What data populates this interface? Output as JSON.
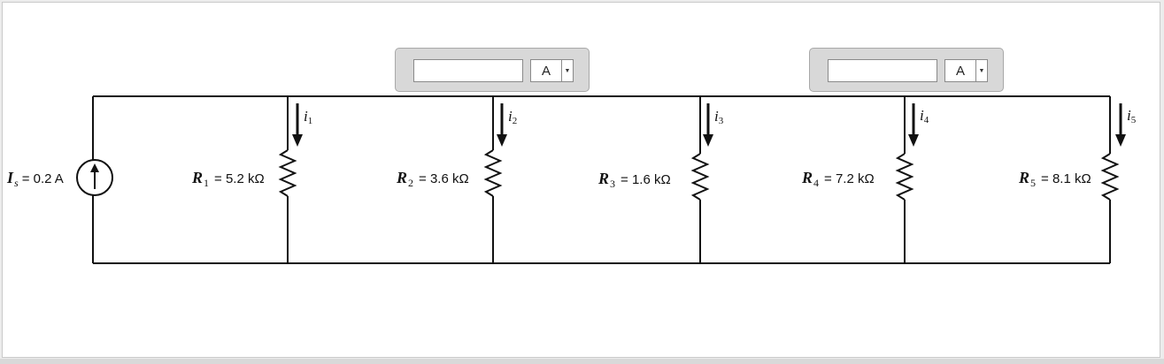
{
  "source": {
    "symbol": "I",
    "subscript": "s",
    "value": "= 0.2 A"
  },
  "resistors": [
    {
      "symbol": "R",
      "subscript": "1",
      "value": "= 5.2 kΩ"
    },
    {
      "symbol": "R",
      "subscript": "2",
      "value": "= 3.6 kΩ"
    },
    {
      "symbol": "R",
      "subscript": "3",
      "value": "= 1.6 kΩ"
    },
    {
      "symbol": "R",
      "subscript": "4",
      "value": "= 7.2 kΩ"
    },
    {
      "symbol": "R",
      "subscript": "5",
      "value": "= 8.1 kΩ"
    }
  ],
  "currents": [
    {
      "symbol": "i",
      "subscript": "1"
    },
    {
      "symbol": "i",
      "subscript": "2"
    },
    {
      "symbol": "i",
      "subscript": "3"
    },
    {
      "symbol": "i",
      "subscript": "4"
    },
    {
      "symbol": "i",
      "subscript": "5"
    }
  ],
  "answers": [
    {
      "value": "",
      "unit": "A"
    },
    {
      "value": "",
      "unit": "A"
    }
  ]
}
